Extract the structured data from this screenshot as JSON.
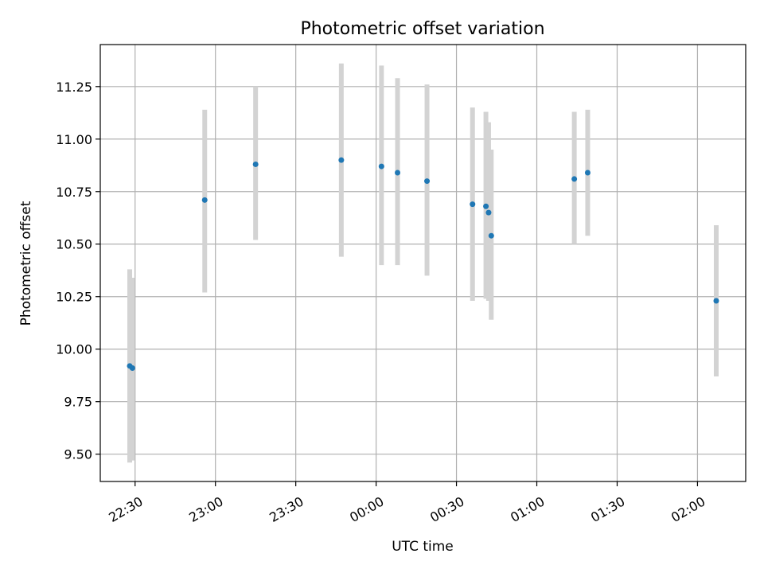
{
  "chart_data": {
    "type": "scatter",
    "title": "Photometric offset variation",
    "xlabel": "UTC time",
    "ylabel": "Photometric offset",
    "x_axis": {
      "kind": "time",
      "start": "22:17",
      "end": "02:18",
      "ticks": [
        "22:30",
        "23:00",
        "23:30",
        "00:00",
        "00:30",
        "01:00",
        "01:30",
        "02:00"
      ]
    },
    "ylim": [
      9.37,
      11.45
    ],
    "yticks": [
      "9.50",
      "9.75",
      "10.00",
      "10.25",
      "10.50",
      "10.75",
      "11.00",
      "11.25"
    ],
    "grid": true,
    "colors": {
      "points": "#1f77b4",
      "errorbars": "#d3d3d3"
    },
    "points": [
      {
        "t": "22:28",
        "y": 9.92,
        "ylow": 9.46,
        "yhigh": 10.38
      },
      {
        "t": "22:29",
        "y": 9.91,
        "ylow": 9.47,
        "yhigh": 10.34
      },
      {
        "t": "22:56",
        "y": 10.71,
        "ylow": 10.27,
        "yhigh": 11.14
      },
      {
        "t": "23:15",
        "y": 10.88,
        "ylow": 10.52,
        "yhigh": 11.25
      },
      {
        "t": "23:47",
        "y": 10.9,
        "ylow": 10.44,
        "yhigh": 11.36
      },
      {
        "t": "00:02",
        "y": 10.87,
        "ylow": 10.4,
        "yhigh": 11.35
      },
      {
        "t": "00:08",
        "y": 10.84,
        "ylow": 10.4,
        "yhigh": 11.29
      },
      {
        "t": "00:19",
        "y": 10.8,
        "ylow": 10.35,
        "yhigh": 11.26
      },
      {
        "t": "00:36",
        "y": 10.69,
        "ylow": 10.23,
        "yhigh": 11.15
      },
      {
        "t": "00:41",
        "y": 10.68,
        "ylow": 10.24,
        "yhigh": 11.13
      },
      {
        "t": "00:42",
        "y": 10.65,
        "ylow": 10.23,
        "yhigh": 11.08
      },
      {
        "t": "00:43",
        "y": 10.54,
        "ylow": 10.14,
        "yhigh": 10.95
      },
      {
        "t": "01:14",
        "y": 10.81,
        "ylow": 10.5,
        "yhigh": 11.13
      },
      {
        "t": "01:19",
        "y": 10.84,
        "ylow": 10.54,
        "yhigh": 11.14
      },
      {
        "t": "02:07",
        "y": 10.23,
        "ylow": 9.87,
        "yhigh": 10.59
      }
    ]
  }
}
